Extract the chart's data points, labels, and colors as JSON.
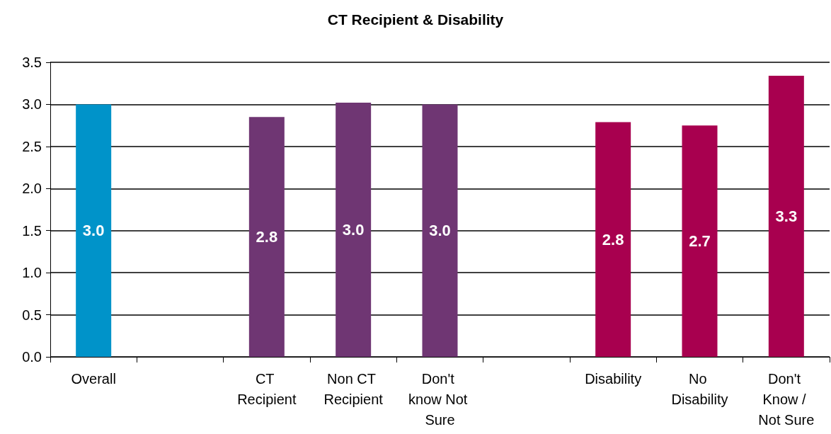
{
  "chart_data": {
    "type": "bar",
    "title": "CT Recipient & Disability",
    "categories": [
      "Overall",
      null,
      "CT Recipient",
      "Non CT Recipient",
      "Don't know Not Sure",
      null,
      "Disability",
      "No Disability",
      "Don't Know / Not Sure"
    ],
    "values": [
      3.0,
      null,
      2.85,
      3.02,
      3.0,
      null,
      2.79,
      2.75,
      3.34
    ],
    "value_labels": [
      "3.0",
      null,
      "2.8",
      "3.0",
      "3.0",
      null,
      "2.8",
      "2.7",
      "3.3"
    ],
    "colors": [
      "#0093c9",
      null,
      "#6f3673",
      "#6f3673",
      "#6f3673",
      null,
      "#a8004f",
      "#a8004f",
      "#a8004f"
    ],
    "ylim": [
      0,
      3.5
    ],
    "yticks": [
      {
        "value": 0,
        "label": "0.0"
      },
      {
        "value": 0.5,
        "label": "0.5"
      },
      {
        "value": 1,
        "label": "1.0"
      },
      {
        "value": 1.5,
        "label": "1.5"
      },
      {
        "value": 2,
        "label": "2.0"
      },
      {
        "value": 2.5,
        "label": "2.5"
      },
      {
        "value": 3,
        "label": "3.0"
      },
      {
        "value": 3.5,
        "label": "3.5"
      }
    ],
    "grid": "y"
  }
}
